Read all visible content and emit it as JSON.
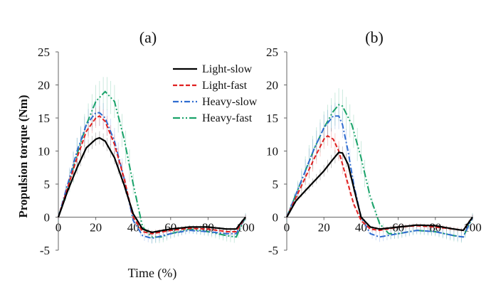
{
  "chart_data": [
    {
      "type": "line",
      "panel_label": "(a)",
      "xlabel": "Time (%)",
      "ylabel": "Propulsion torque (Nm)",
      "xlim": [
        0,
        100
      ],
      "ylim": [
        -5,
        25
      ],
      "x_ticks": [
        "0",
        "20",
        "40",
        "60",
        "80",
        "100"
      ],
      "y_ticks": [
        "-5",
        "0",
        "5",
        "10",
        "15",
        "20",
        "25"
      ],
      "legend": {
        "placement": "top-right"
      },
      "series": [
        {
          "name": "Light-slow",
          "color": "#000000",
          "dash": "solid",
          "sd": 1.0,
          "x": [
            0,
            5,
            10,
            15,
            20,
            22,
            25,
            30,
            35,
            40,
            45,
            50,
            60,
            70,
            80,
            90,
            95,
            100
          ],
          "values": [
            0,
            4,
            7.5,
            10.5,
            11.8,
            12,
            11.5,
            9,
            5,
            0.5,
            -1.8,
            -2.3,
            -1.8,
            -1.5,
            -1.5,
            -1.8,
            -1.8,
            0
          ]
        },
        {
          "name": "Light-fast",
          "color": "#e02020",
          "dash": "dash",
          "sd": 1.5,
          "x": [
            0,
            5,
            10,
            15,
            20,
            22,
            25,
            30,
            35,
            40,
            45,
            50,
            60,
            70,
            80,
            90,
            95,
            100
          ],
          "values": [
            0,
            4.5,
            9,
            13,
            15,
            15.3,
            14.5,
            11,
            6,
            0,
            -2.2,
            -2.5,
            -2,
            -1.7,
            -1.8,
            -2.2,
            -2.2,
            0
          ]
        },
        {
          "name": "Heavy-slow",
          "color": "#2f6cd0",
          "dash": "dashdot",
          "sd": 2.0,
          "x": [
            0,
            5,
            10,
            15,
            20,
            22,
            25,
            30,
            35,
            40,
            45,
            50,
            60,
            70,
            80,
            90,
            95,
            100
          ],
          "values": [
            0,
            5,
            10,
            14,
            15.8,
            15.8,
            15,
            11.5,
            6,
            -0.5,
            -2.8,
            -3.2,
            -2.5,
            -2,
            -2.2,
            -2.5,
            -2.5,
            0
          ]
        },
        {
          "name": "Heavy-fast",
          "color": "#1aa36a",
          "dash": "dashdotdot",
          "sd": 2.5,
          "x": [
            0,
            5,
            10,
            15,
            20,
            25,
            30,
            35,
            40,
            45,
            50,
            55,
            60,
            70,
            80,
            90,
            95,
            100
          ],
          "values": [
            0,
            4.5,
            9.5,
            14,
            17.5,
            19,
            17.5,
            12,
            5,
            -1.5,
            -3,
            -3,
            -2.5,
            -1.8,
            -2.2,
            -2.8,
            -3,
            0
          ]
        }
      ]
    },
    {
      "type": "line",
      "panel_label": "(b)",
      "xlabel": "",
      "ylabel": "",
      "xlim": [
        0,
        100
      ],
      "ylim": [
        -5,
        25
      ],
      "x_ticks": [
        "0",
        "20",
        "40",
        "60",
        "80",
        "100"
      ],
      "y_ticks": [
        "-5",
        "0",
        "5",
        "10",
        "15",
        "20",
        "25"
      ],
      "series": [
        {
          "name": "Light-slow",
          "color": "#000000",
          "dash": "solid",
          "sd": 1.0,
          "x": [
            0,
            5,
            10,
            15,
            20,
            25,
            28,
            30,
            33,
            36,
            40,
            45,
            50,
            60,
            70,
            80,
            90,
            95,
            100
          ],
          "values": [
            0,
            2.5,
            4,
            5.5,
            7,
            8.8,
            9.8,
            9.7,
            8,
            4.5,
            0,
            -1.5,
            -1.8,
            -1.5,
            -1.2,
            -1.3,
            -1.8,
            -2,
            0
          ]
        },
        {
          "name": "Light-fast",
          "color": "#e02020",
          "dash": "dash",
          "sd": 1.5,
          "x": [
            0,
            5,
            10,
            15,
            20,
            22,
            25,
            28,
            30,
            33,
            36,
            40,
            45,
            50,
            60,
            70,
            80,
            90,
            95,
            100
          ],
          "values": [
            0,
            3,
            6,
            9,
            11.8,
            12.3,
            11.8,
            10,
            8,
            5,
            2,
            -0.5,
            -1.8,
            -2,
            -1.5,
            -1.3,
            -1.5,
            -1.8,
            -2,
            0
          ]
        },
        {
          "name": "Heavy-slow",
          "color": "#2f6cd0",
          "dash": "dashdot",
          "sd": 2.0,
          "x": [
            0,
            5,
            10,
            15,
            20,
            25,
            28,
            30,
            33,
            36,
            40,
            45,
            50,
            60,
            70,
            80,
            90,
            95,
            100
          ],
          "values": [
            0,
            3.5,
            7,
            10.5,
            13.5,
            15.3,
            15.3,
            14,
            10,
            5,
            0,
            -2.5,
            -3,
            -2.5,
            -2,
            -2.2,
            -2.8,
            -3,
            0
          ]
        },
        {
          "name": "Heavy-fast",
          "color": "#1aa36a",
          "dash": "dashdotdot",
          "sd": 2.5,
          "x": [
            0,
            5,
            10,
            15,
            20,
            25,
            28,
            30,
            35,
            40,
            45,
            50,
            55,
            60,
            70,
            80,
            90,
            95,
            100
          ],
          "values": [
            0,
            3.5,
            7,
            10.5,
            13.5,
            16,
            17,
            16.8,
            14,
            9,
            3,
            -1,
            -2.5,
            -2.5,
            -2,
            -2.2,
            -2.8,
            -3,
            0
          ]
        }
      ]
    }
  ]
}
